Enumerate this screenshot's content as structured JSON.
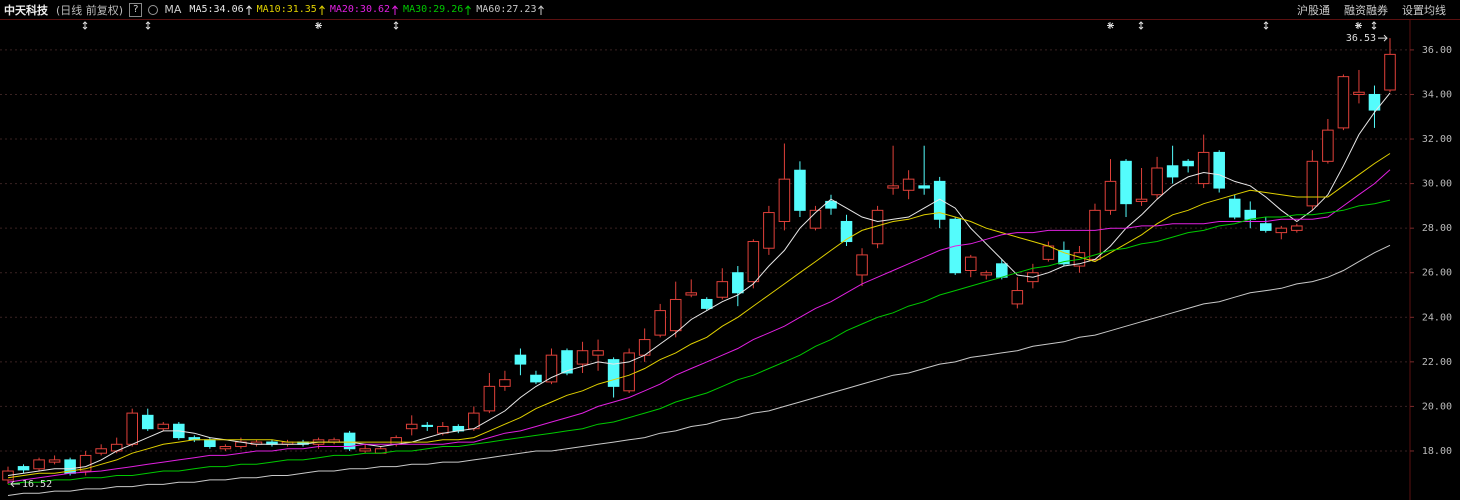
{
  "chart_data": {
    "type": "candlestick",
    "title": "中天科技",
    "subtitle": "(日线 前复权)",
    "help": "?",
    "indicator": "MA",
    "toolbar": [
      "沪股通",
      "融资融券",
      "设置均线"
    ],
    "up_color": "#e0413a",
    "down_color": "#54fcfc",
    "ylim": [
      15.8,
      38.24
    ],
    "yticks": [
      {
        "value": 18,
        "label": "18.00"
      },
      {
        "value": 20,
        "label": "20.00"
      },
      {
        "value": 22,
        "label": "22.00"
      },
      {
        "value": 24,
        "label": "24.00"
      },
      {
        "value": 26,
        "label": "26.00"
      },
      {
        "value": 28,
        "label": "28.00"
      },
      {
        "value": 30,
        "label": "30.00"
      },
      {
        "value": 32,
        "label": "32.00"
      },
      {
        "value": 34,
        "label": "34.00"
      },
      {
        "value": 36,
        "label": "36.00"
      }
    ],
    "grid": true,
    "max_label": 36.53,
    "min_label": 16.52,
    "open": [
      16.7,
      17.3,
      17.2,
      17.5,
      17.6,
      17.1,
      17.9,
      18.0,
      18.3,
      19.6,
      19.0,
      19.2,
      18.6,
      18.5,
      18.1,
      18.2,
      18.3,
      18.4,
      18.3,
      18.4,
      18.3,
      18.4,
      18.8,
      18.0,
      17.9,
      18.3,
      19.0,
      19.15,
      18.8,
      19.1,
      19.0,
      19.8,
      20.9,
      22.3,
      21.4,
      21.1,
      22.5,
      21.9,
      22.3,
      22.1,
      20.7,
      22.3,
      23.2,
      23.4,
      25.0,
      24.8,
      24.9,
      26.0,
      25.6,
      27.1,
      28.3,
      30.6,
      28.0,
      29.2,
      28.3,
      25.9,
      27.3,
      29.8,
      29.7,
      29.9,
      30.1,
      28.4,
      26.1,
      25.9,
      26.4,
      24.6,
      25.6,
      26.6,
      27.0,
      26.3,
      26.6,
      28.8,
      31.0,
      29.2,
      29.5,
      30.8,
      31.0,
      30.0,
      31.4,
      29.3,
      28.8,
      28.2,
      27.8,
      27.9,
      29.0,
      31.0,
      32.5,
      34.0,
      34.0,
      34.2
    ],
    "high": [
      17.3,
      17.4,
      17.7,
      17.8,
      17.7,
      18.0,
      18.3,
      18.6,
      19.9,
      19.9,
      19.3,
      19.3,
      18.7,
      18.6,
      18.3,
      18.6,
      18.5,
      18.5,
      18.5,
      18.5,
      18.6,
      18.6,
      18.9,
      18.3,
      18.2,
      18.7,
      19.6,
      19.3,
      19.3,
      19.2,
      20.0,
      21.5,
      21.6,
      22.6,
      21.6,
      22.6,
      22.6,
      22.9,
      23.0,
      22.2,
      22.6,
      23.5,
      24.6,
      25.6,
      25.7,
      24.9,
      26.2,
      26.3,
      27.5,
      29.0,
      31.8,
      31.0,
      29.0,
      29.5,
      28.6,
      27.1,
      29.0,
      31.7,
      30.6,
      31.7,
      30.3,
      28.5,
      26.8,
      26.1,
      26.6,
      25.8,
      26.4,
      27.4,
      27.4,
      27.2,
      29.1,
      31.1,
      31.1,
      30.7,
      31.2,
      31.7,
      31.1,
      32.2,
      31.5,
      29.5,
      29.2,
      28.5,
      28.1,
      28.2,
      31.5,
      32.9,
      34.9,
      35.1,
      34.4,
      36.53
    ],
    "low": [
      16.52,
      17.0,
      17.1,
      17.4,
      16.9,
      16.9,
      17.8,
      17.9,
      18.2,
      18.9,
      18.9,
      18.5,
      18.4,
      18.1,
      18.0,
      18.1,
      18.2,
      18.2,
      18.2,
      18.2,
      18.1,
      18.3,
      18.0,
      17.9,
      17.9,
      18.2,
      18.7,
      18.9,
      18.7,
      18.8,
      18.9,
      19.7,
      20.7,
      21.4,
      21.0,
      21.0,
      21.4,
      21.5,
      21.6,
      20.4,
      20.6,
      22.0,
      23.1,
      23.1,
      24.9,
      24.3,
      24.8,
      24.5,
      25.3,
      26.8,
      27.9,
      28.5,
      27.9,
      28.6,
      27.2,
      25.4,
      27.1,
      29.5,
      29.3,
      29.5,
      28.0,
      25.9,
      25.8,
      25.7,
      25.7,
      24.4,
      25.3,
      26.5,
      26.3,
      26.0,
      26.5,
      28.6,
      28.5,
      29.0,
      29.3,
      30.0,
      30.5,
      29.8,
      29.6,
      28.4,
      28.0,
      27.8,
      27.5,
      27.8,
      28.8,
      30.9,
      32.4,
      33.6,
      32.5,
      34.1
    ],
    "close": [
      17.1,
      17.15,
      17.6,
      17.6,
      17.0,
      17.8,
      18.1,
      18.3,
      19.7,
      19.0,
      19.2,
      18.6,
      18.5,
      18.2,
      18.2,
      18.4,
      18.4,
      18.3,
      18.4,
      18.3,
      18.5,
      18.5,
      18.1,
      18.1,
      18.1,
      18.6,
      19.2,
      19.1,
      19.1,
      18.9,
      19.7,
      20.9,
      21.2,
      21.9,
      21.1,
      22.3,
      21.5,
      22.5,
      22.5,
      20.9,
      22.4,
      23.0,
      24.3,
      24.8,
      25.1,
      24.4,
      25.6,
      25.1,
      27.4,
      28.7,
      30.2,
      28.8,
      28.8,
      28.9,
      27.4,
      26.8,
      28.8,
      29.9,
      30.2,
      29.8,
      28.4,
      26.0,
      26.7,
      26.0,
      25.8,
      25.2,
      26.0,
      27.2,
      26.4,
      26.9,
      28.8,
      30.1,
      29.1,
      29.3,
      30.7,
      30.3,
      30.8,
      31.4,
      29.8,
      28.5,
      28.4,
      27.9,
      28.0,
      28.1,
      31.0,
      32.4,
      34.8,
      34.1,
      33.3,
      35.8
    ],
    "series": [
      {
        "name": "MA5:34.06",
        "color": "#e8e8e8",
        "values": [
          16.9,
          17.0,
          17.1,
          17.2,
          17.2,
          17.3,
          17.6,
          18.0,
          18.3,
          18.6,
          18.9,
          18.9,
          18.8,
          18.6,
          18.5,
          18.4,
          18.3,
          18.3,
          18.3,
          18.3,
          18.4,
          18.4,
          18.4,
          18.3,
          18.2,
          18.3,
          18.4,
          18.6,
          18.8,
          18.9,
          19.0,
          19.4,
          19.8,
          20.4,
          20.9,
          21.3,
          21.6,
          21.8,
          22.0,
          21.9,
          22.0,
          22.3,
          22.8,
          23.3,
          23.9,
          24.3,
          24.7,
          25.0,
          25.5,
          26.3,
          27.0,
          28.0,
          28.7,
          29.3,
          28.9,
          28.5,
          28.3,
          28.4,
          28.5,
          28.9,
          29.3,
          28.9,
          28.0,
          27.3,
          26.6,
          25.9,
          25.8,
          26.0,
          26.3,
          26.4,
          26.6,
          27.2,
          28.0,
          28.6,
          29.3,
          29.9,
          30.3,
          30.5,
          30.4,
          30.1,
          29.9,
          29.4,
          28.8,
          28.3,
          28.8,
          29.5,
          30.8,
          32.2,
          33.2,
          34.06
        ]
      },
      {
        "name": "MA10:31.35",
        "color": "#e0d000",
        "values": [
          16.8,
          16.9,
          17.0,
          17.0,
          17.1,
          17.2,
          17.4,
          17.6,
          17.9,
          18.1,
          18.3,
          18.4,
          18.5,
          18.5,
          18.5,
          18.5,
          18.5,
          18.5,
          18.4,
          18.4,
          18.4,
          18.4,
          18.4,
          18.4,
          18.4,
          18.4,
          18.4,
          18.4,
          18.5,
          18.5,
          18.6,
          18.9,
          19.2,
          19.5,
          19.9,
          20.2,
          20.5,
          20.7,
          21.0,
          21.2,
          21.4,
          21.7,
          22.1,
          22.4,
          22.8,
          23.1,
          23.6,
          24.0,
          24.5,
          25.0,
          25.5,
          26.0,
          26.5,
          27.0,
          27.5,
          27.9,
          28.1,
          28.3,
          28.4,
          28.6,
          28.7,
          28.5,
          28.3,
          28.0,
          27.8,
          27.6,
          27.4,
          27.2,
          26.9,
          26.7,
          26.5,
          26.9,
          27.3,
          27.7,
          28.2,
          28.6,
          28.8,
          29.1,
          29.3,
          29.5,
          29.7,
          29.6,
          29.5,
          29.4,
          29.4,
          29.4,
          29.9,
          30.4,
          30.9,
          31.35
        ]
      },
      {
        "name": "MA20:30.62",
        "color": "#e020e0",
        "values": [
          16.6,
          16.7,
          16.8,
          16.9,
          17.0,
          17.05,
          17.1,
          17.2,
          17.3,
          17.4,
          17.5,
          17.6,
          17.7,
          17.8,
          17.8,
          17.9,
          18.0,
          18.0,
          18.1,
          18.1,
          18.2,
          18.2,
          18.2,
          18.3,
          18.3,
          18.3,
          18.3,
          18.3,
          18.3,
          18.4,
          18.4,
          18.6,
          18.8,
          18.9,
          19.1,
          19.3,
          19.5,
          19.7,
          20.0,
          20.2,
          20.4,
          20.7,
          21.0,
          21.4,
          21.7,
          22.0,
          22.3,
          22.6,
          23.0,
          23.3,
          23.6,
          24.0,
          24.4,
          24.7,
          25.1,
          25.5,
          25.8,
          26.1,
          26.4,
          26.7,
          27.0,
          27.2,
          27.3,
          27.5,
          27.7,
          27.8,
          27.8,
          27.9,
          27.9,
          27.9,
          27.9,
          28.0,
          28.0,
          28.1,
          28.1,
          28.2,
          28.2,
          28.2,
          28.3,
          28.3,
          28.3,
          28.3,
          28.4,
          28.4,
          28.4,
          28.5,
          29.0,
          29.5,
          30.0,
          30.62
        ]
      },
      {
        "name": "MA30:29.26",
        "color": "#00c800",
        "values": [
          16.5,
          16.6,
          16.6,
          16.7,
          16.7,
          16.8,
          16.8,
          16.9,
          16.9,
          17.0,
          17.1,
          17.1,
          17.2,
          17.3,
          17.3,
          17.4,
          17.4,
          17.5,
          17.6,
          17.6,
          17.7,
          17.8,
          17.8,
          17.9,
          17.9,
          18.0,
          18.0,
          18.1,
          18.2,
          18.2,
          18.3,
          18.4,
          18.5,
          18.6,
          18.7,
          18.8,
          18.9,
          19.0,
          19.2,
          19.3,
          19.5,
          19.7,
          19.9,
          20.2,
          20.4,
          20.6,
          20.9,
          21.2,
          21.4,
          21.7,
          22.0,
          22.3,
          22.7,
          23.0,
          23.4,
          23.7,
          24.0,
          24.2,
          24.5,
          24.7,
          25.0,
          25.2,
          25.4,
          25.6,
          25.8,
          26.0,
          26.2,
          26.3,
          26.5,
          26.6,
          26.8,
          27.0,
          27.1,
          27.3,
          27.4,
          27.6,
          27.8,
          27.9,
          28.1,
          28.2,
          28.4,
          28.5,
          28.5,
          28.6,
          28.6,
          28.7,
          28.8,
          29.0,
          29.1,
          29.26
        ]
      },
      {
        "name": "MA60:27.23",
        "color": "#c8c8c8",
        "values": [
          16.0,
          16.1,
          16.1,
          16.2,
          16.2,
          16.3,
          16.3,
          16.4,
          16.4,
          16.5,
          16.5,
          16.6,
          16.6,
          16.7,
          16.7,
          16.8,
          16.8,
          16.9,
          16.9,
          17.0,
          17.1,
          17.1,
          17.2,
          17.2,
          17.3,
          17.3,
          17.4,
          17.4,
          17.5,
          17.5,
          17.6,
          17.7,
          17.8,
          17.9,
          18.0,
          18.0,
          18.1,
          18.2,
          18.3,
          18.4,
          18.5,
          18.6,
          18.8,
          18.9,
          19.1,
          19.2,
          19.4,
          19.5,
          19.7,
          19.8,
          20.0,
          20.2,
          20.4,
          20.6,
          20.8,
          21.0,
          21.2,
          21.4,
          21.5,
          21.7,
          21.9,
          22.0,
          22.2,
          22.3,
          22.4,
          22.5,
          22.7,
          22.8,
          22.9,
          23.1,
          23.2,
          23.4,
          23.6,
          23.8,
          24.0,
          24.2,
          24.4,
          24.6,
          24.7,
          24.9,
          25.1,
          25.2,
          25.3,
          25.5,
          25.6,
          25.8,
          26.1,
          26.5,
          26.9,
          27.23
        ]
      }
    ]
  }
}
